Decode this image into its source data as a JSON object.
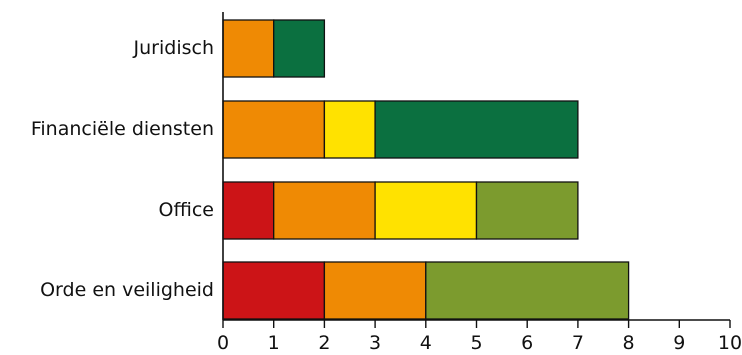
{
  "chart_data": {
    "type": "bar",
    "orientation": "horizontal",
    "stacked": true,
    "title": "",
    "xlabel": "",
    "ylabel": "",
    "xlim": [
      0,
      10
    ],
    "x_ticks": [
      0,
      1,
      2,
      3,
      4,
      5,
      6,
      7,
      8,
      9,
      10
    ],
    "grid": false,
    "legend": "none",
    "categories": [
      "Juridisch",
      "Financiële diensten",
      "Office",
      "Orde en veiligheid"
    ],
    "series": [
      {
        "color": "#cc1417",
        "values": [
          0,
          0,
          1,
          2
        ]
      },
      {
        "color": "#ef8a04",
        "values": [
          1,
          2,
          2,
          2
        ]
      },
      {
        "color": "#ffe200",
        "values": [
          0,
          1,
          2,
          0
        ]
      },
      {
        "color": "#7c9b2e",
        "values": [
          0,
          0,
          2,
          4
        ]
      },
      {
        "color": "#0b7040",
        "values": [
          1,
          4,
          0,
          0
        ]
      }
    ]
  }
}
